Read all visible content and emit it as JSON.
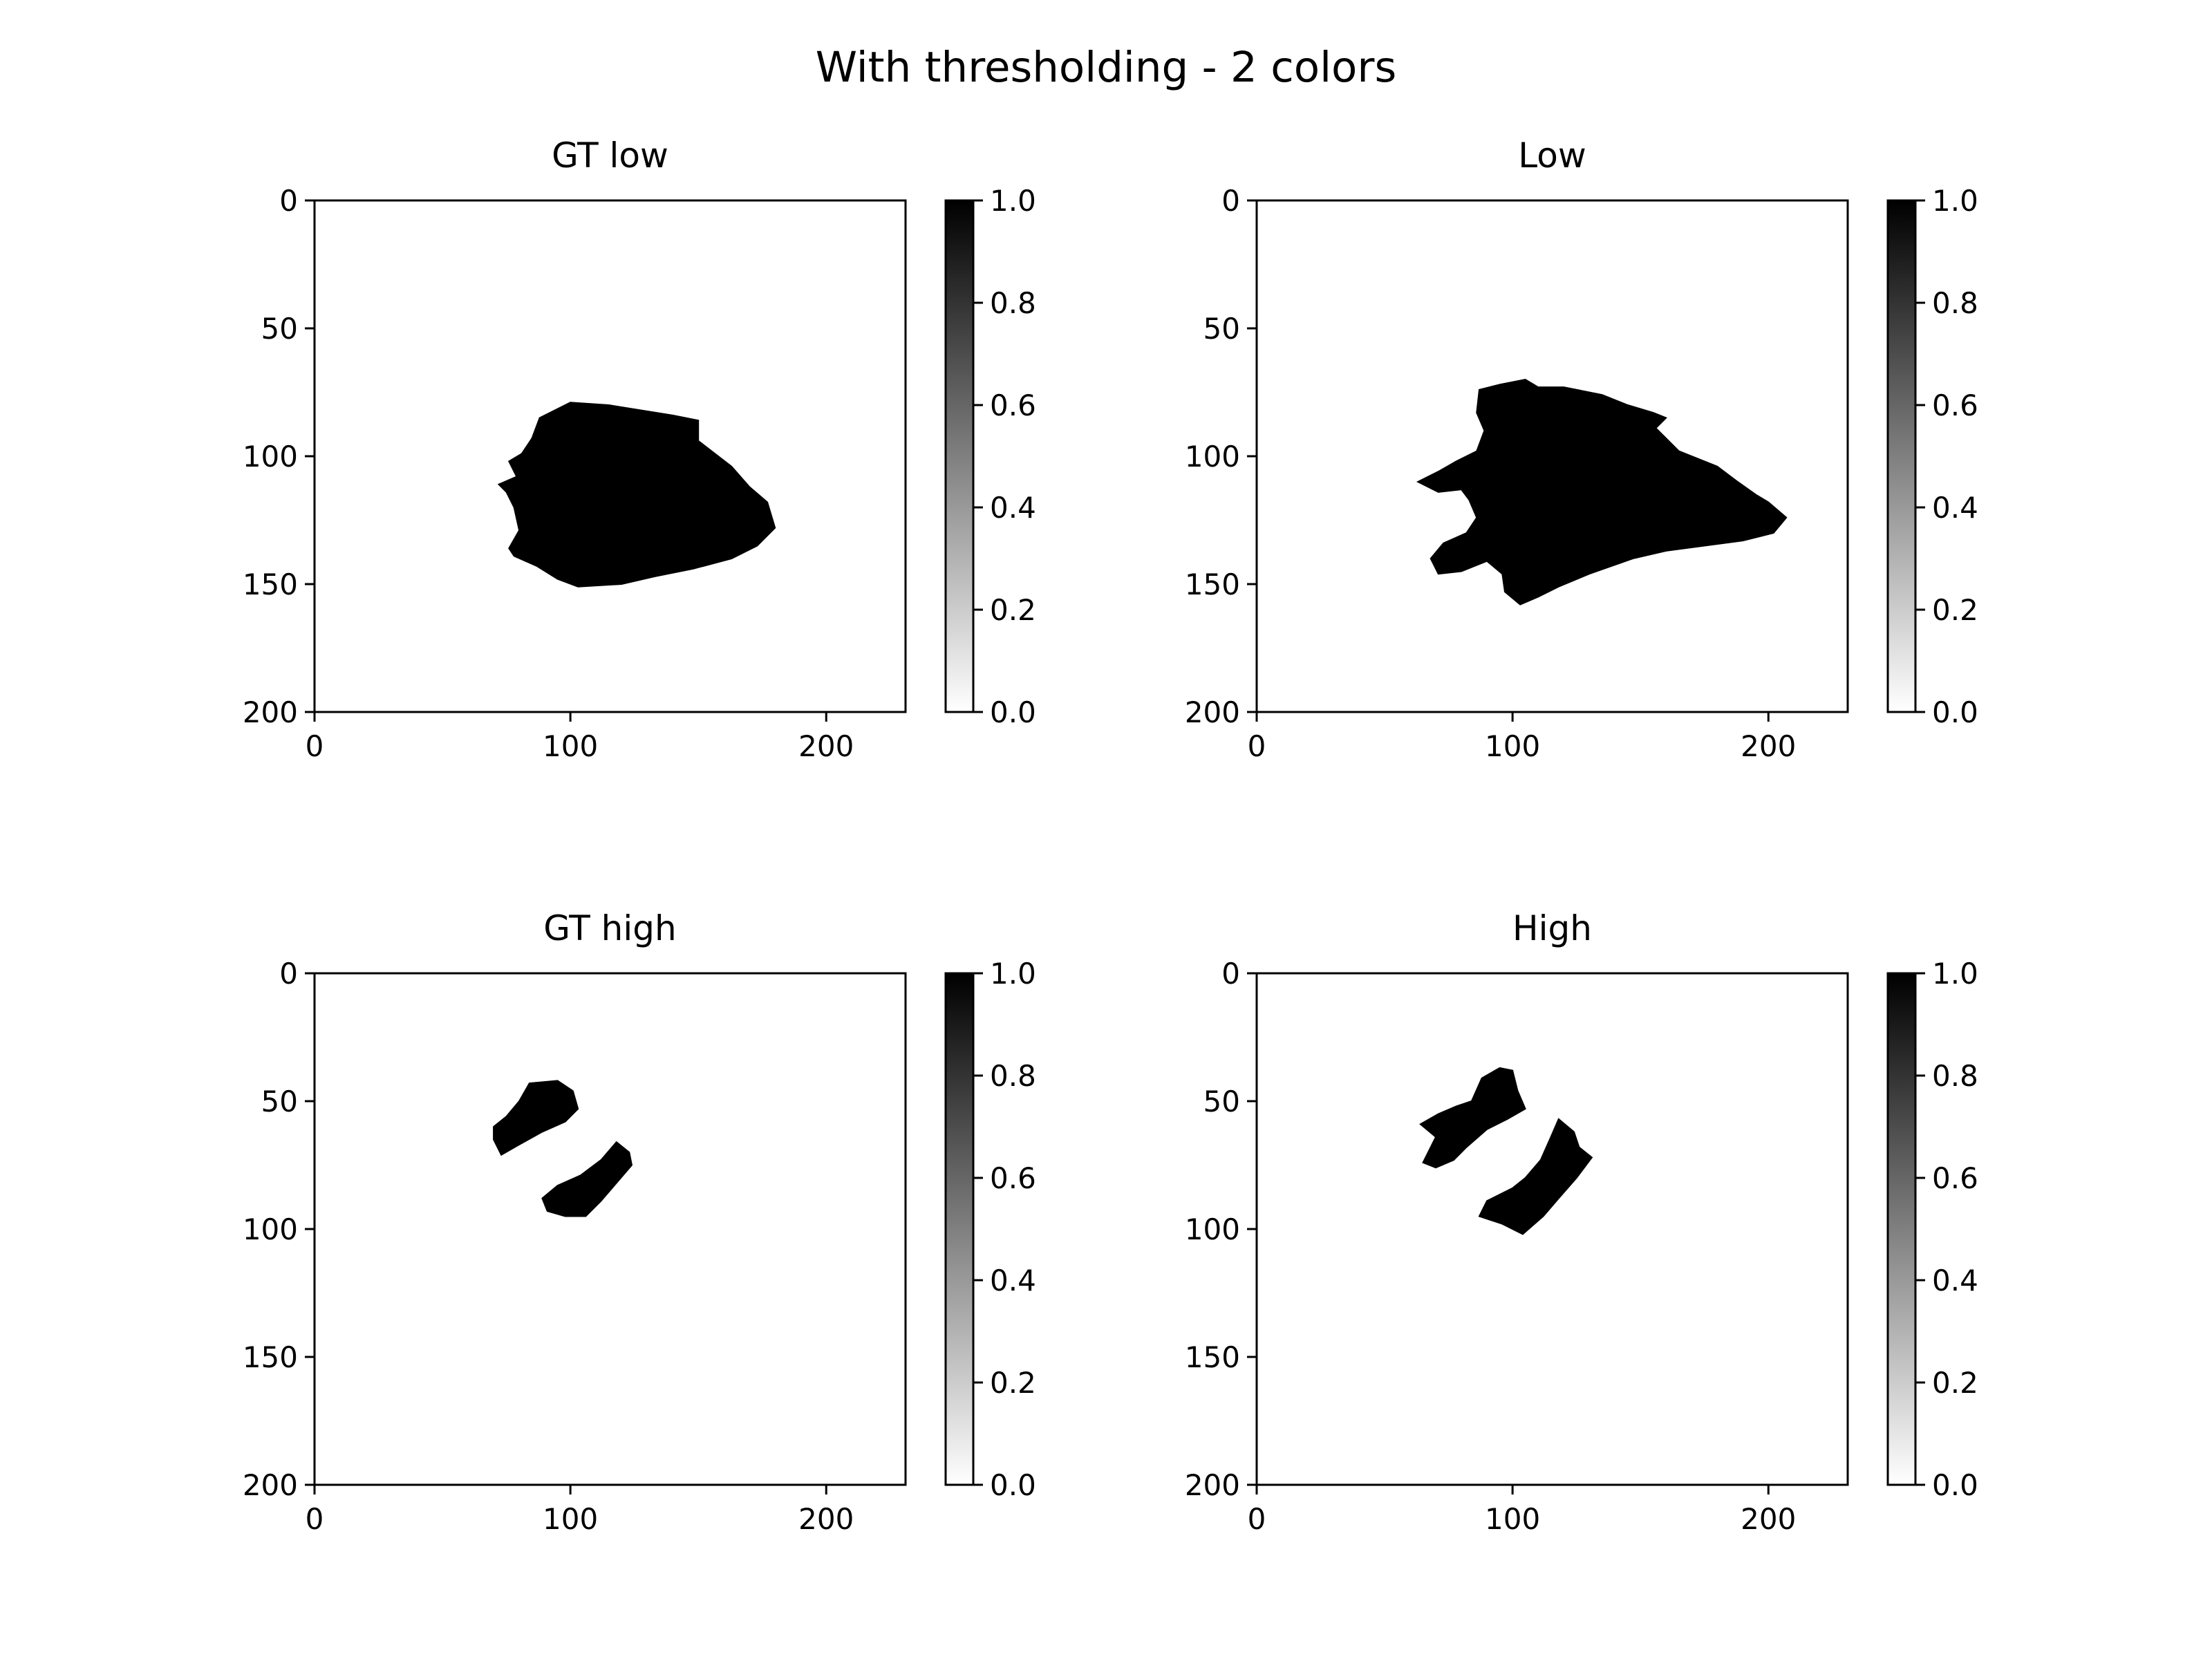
{
  "title": "With thresholding - 2 colors",
  "chart_data": [
    {
      "type": "heatmap",
      "title": "GT low",
      "colormap": "binary",
      "xticks": [
        0,
        100,
        200
      ],
      "yticks": [
        0,
        50,
        100,
        150,
        200
      ],
      "xlim": [
        0,
        231
      ],
      "ylim": [
        200,
        0
      ],
      "colorbar": {
        "range": [
          0.0,
          1.0
        ],
        "ticks": [
          "0.0",
          "0.2",
          "0.4",
          "0.6",
          "0.8",
          "1.0"
        ]
      },
      "regions": [
        {
          "value": 1,
          "polygon": [
            [
              88,
              85
            ],
            [
              100,
              79
            ],
            [
              115,
              80
            ],
            [
              140,
              84
            ],
            [
              150,
              86
            ],
            [
              150,
              94
            ],
            [
              163,
              104
            ],
            [
              170,
              112
            ],
            [
              177,
              118
            ],
            [
              180,
              128
            ],
            [
              173,
              135
            ],
            [
              163,
              140
            ],
            [
              148,
              144
            ],
            [
              133,
              147
            ],
            [
              120,
              150
            ],
            [
              103,
              151
            ],
            [
              95,
              148
            ],
            [
              87,
              143
            ],
            [
              78,
              139
            ],
            [
              76,
              136
            ],
            [
              80,
              129
            ],
            [
              78,
              120
            ],
            [
              75,
              114
            ],
            [
              72,
              111
            ],
            [
              79,
              108
            ],
            [
              76,
              102
            ],
            [
              81,
              99
            ],
            [
              85,
              93
            ]
          ]
        }
      ]
    },
    {
      "type": "heatmap",
      "title": "Low",
      "colormap": "binary",
      "xticks": [
        0,
        100,
        200
      ],
      "yticks": [
        0,
        50,
        100,
        150,
        200
      ],
      "xlim": [
        0,
        231
      ],
      "ylim": [
        200,
        0
      ],
      "colorbar": {
        "range": [
          0.0,
          1.0
        ],
        "ticks": [
          "0.0",
          "0.2",
          "0.4",
          "0.6",
          "0.8",
          "1.0"
        ]
      },
      "regions": [
        {
          "value": 1,
          "polygon": [
            [
              87,
              74
            ],
            [
              95,
              72
            ],
            [
              105,
              70
            ],
            [
              110,
              73
            ],
            [
              120,
              73
            ],
            [
              135,
              76
            ],
            [
              145,
              80
            ],
            [
              155,
              83
            ],
            [
              160,
              85
            ],
            [
              156,
              89
            ],
            [
              165,
              98
            ],
            [
              180,
              104
            ],
            [
              188,
              110
            ],
            [
              195,
              115
            ],
            [
              200,
              118
            ],
            [
              207,
              124
            ],
            [
              202,
              130
            ],
            [
              190,
              133
            ],
            [
              175,
              135
            ],
            [
              160,
              137
            ],
            [
              147,
              140
            ],
            [
              130,
              146
            ],
            [
              118,
              151
            ],
            [
              110,
              155
            ],
            [
              103,
              158
            ],
            [
              97,
              153
            ],
            [
              96,
              146
            ],
            [
              90,
              141
            ],
            [
              85,
              143
            ],
            [
              80,
              145
            ],
            [
              71,
              146
            ],
            [
              68,
              140
            ],
            [
              73,
              134
            ],
            [
              82,
              130
            ],
            [
              86,
              124
            ],
            [
              83,
              117
            ],
            [
              80,
              113
            ],
            [
              71,
              114
            ],
            [
              63,
              110
            ],
            [
              71,
              106
            ],
            [
              78,
              102
            ],
            [
              86,
              98
            ],
            [
              89,
              90
            ],
            [
              86,
              83
            ]
          ]
        }
      ]
    },
    {
      "type": "heatmap",
      "title": "GT high",
      "colormap": "binary",
      "xticks": [
        0,
        100,
        200
      ],
      "yticks": [
        0,
        50,
        100,
        150,
        200
      ],
      "xlim": [
        0,
        231
      ],
      "ylim": [
        200,
        0
      ],
      "colorbar": {
        "range": [
          0.0,
          1.0
        ],
        "ticks": [
          "0.0",
          "0.2",
          "0.4",
          "0.6",
          "0.8",
          "1.0"
        ]
      },
      "regions": [
        {
          "value": 1,
          "polygon": [
            [
              84,
              43
            ],
            [
              95,
              42
            ],
            [
              101,
              46
            ],
            [
              103,
              53
            ],
            [
              98,
              58
            ],
            [
              89,
              62
            ],
            [
              80,
              67
            ],
            [
              73,
              71
            ],
            [
              70,
              65
            ],
            [
              70,
              60
            ],
            [
              75,
              56
            ],
            [
              80,
              50
            ]
          ]
        },
        {
          "value": 1,
          "polygon": [
            [
              118,
              66
            ],
            [
              123,
              70
            ],
            [
              124,
              75
            ],
            [
              118,
              82
            ],
            [
              112,
              89
            ],
            [
              106,
              95
            ],
            [
              98,
              95
            ],
            [
              91,
              93
            ],
            [
              89,
              88
            ],
            [
              95,
              83
            ],
            [
              104,
              79
            ],
            [
              112,
              73
            ]
          ]
        }
      ]
    },
    {
      "type": "heatmap",
      "title": "High",
      "colormap": "binary",
      "xticks": [
        0,
        100,
        200
      ],
      "yticks": [
        0,
        50,
        100,
        150,
        200
      ],
      "xlim": [
        0,
        231
      ],
      "ylim": [
        200,
        0
      ],
      "colorbar": {
        "range": [
          0.0,
          1.0
        ],
        "ticks": [
          "0.0",
          "0.2",
          "0.4",
          "0.6",
          "0.8",
          "1.0"
        ]
      },
      "regions": [
        {
          "value": 1,
          "polygon": [
            [
              88,
              41
            ],
            [
              95,
              37
            ],
            [
              100,
              38
            ],
            [
              102,
              46
            ],
            [
              105,
              53
            ],
            [
              98,
              57
            ],
            [
              90,
              61
            ],
            [
              82,
              68
            ],
            [
              77,
              73
            ],
            [
              70,
              76
            ],
            [
              65,
              74
            ],
            [
              70,
              64
            ],
            [
              64,
              59
            ],
            [
              71,
              55
            ],
            [
              78,
              52
            ],
            [
              84,
              50
            ]
          ]
        },
        {
          "value": 1,
          "polygon": [
            [
              118,
              57
            ],
            [
              124,
              62
            ],
            [
              126,
              68
            ],
            [
              131,
              72
            ],
            [
              125,
              80
            ],
            [
              118,
              88
            ],
            [
              112,
              95
            ],
            [
              104,
              102
            ],
            [
              96,
              98
            ],
            [
              87,
              95
            ],
            [
              90,
              89
            ],
            [
              100,
              84
            ],
            [
              105,
              80
            ],
            [
              111,
              73
            ],
            [
              115,
              64
            ]
          ]
        }
      ]
    }
  ]
}
